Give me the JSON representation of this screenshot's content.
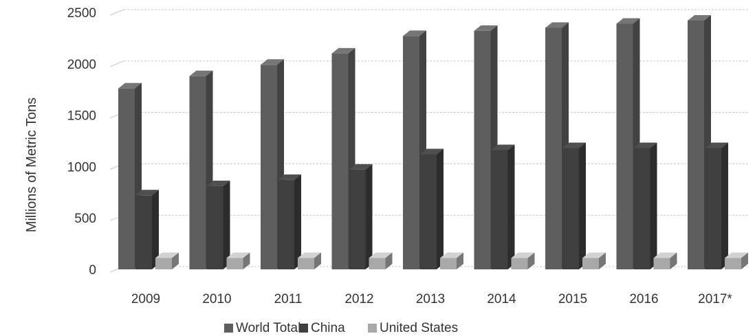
{
  "chart_data": {
    "type": "bar",
    "title": "",
    "xlabel": "",
    "ylabel": "Millions of Metric Tons",
    "ylim": [
      0,
      2500
    ],
    "yticks": [
      0,
      500,
      1000,
      1500,
      2000,
      2500
    ],
    "categories": [
      "2009",
      "2010",
      "2011",
      "2012",
      "2013",
      "2014",
      "2015",
      "2016",
      "2017*"
    ],
    "series": [
      {
        "name": "World Total",
        "color": "#5e5e5e",
        "values": [
          1760,
          1880,
          1990,
          2100,
          2270,
          2320,
          2350,
          2390,
          2420
        ]
      },
      {
        "name": "China",
        "color": "#3f3f3f",
        "values": [
          720,
          810,
          870,
          970,
          1120,
          1160,
          1180,
          1180,
          1180
        ]
      },
      {
        "name": "United States",
        "color": "#a8a8a8",
        "values": [
          110,
          110,
          110,
          110,
          110,
          110,
          110,
          110,
          110
        ]
      }
    ],
    "grid": true,
    "legend_position": "bottom"
  }
}
